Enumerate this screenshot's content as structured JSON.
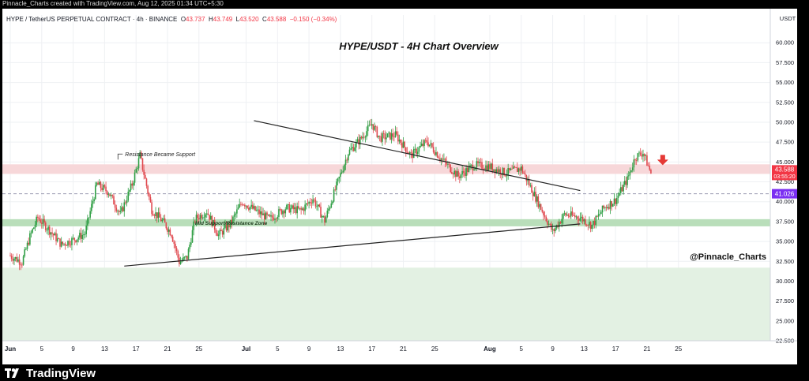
{
  "watermark_top": "Pinnacle_Charts created with TradingView.com, Aug 12, 2025 01:34 UTC+5:30",
  "header": {
    "symbol": "HYPE / TetherUS PERPETUAL CONTRACT · 4h · BINANCE",
    "o_label": "O",
    "o_value": "43.737",
    "h_label": "H",
    "h_value": "43.749",
    "l_label": "L",
    "l_value": "43.520",
    "c_label": "C",
    "c_value": "43.588",
    "change": "−0.150 (−0.34%)"
  },
  "brand": {
    "name": "TradingView",
    "logo_icon": "tradingview-logo-icon"
  },
  "chart_data": {
    "type": "candlestick",
    "title": "HYPE/USDT - 4H Chart Overview",
    "currency_label": "USDT",
    "author_tag": "@Pinnacle_Charts",
    "ylim": [
      22.5,
      62.5
    ],
    "y_ticks": [
      "60.000",
      "57.500",
      "55.000",
      "52.500",
      "50.000",
      "47.500",
      "45.000",
      "42.500",
      "40.000",
      "37.500",
      "35.000",
      "32.500",
      "30.000",
      "27.500",
      "25.000",
      "22.500"
    ],
    "x_ticks": [
      {
        "label": "Jun",
        "bold": true
      },
      {
        "label": "5"
      },
      {
        "label": "9"
      },
      {
        "label": "13"
      },
      {
        "label": "17"
      },
      {
        "label": "21"
      },
      {
        "label": "25"
      },
      {
        "label": "Jul",
        "bold": true
      },
      {
        "label": "5"
      },
      {
        "label": "9"
      },
      {
        "label": "13"
      },
      {
        "label": "17"
      },
      {
        "label": "21"
      },
      {
        "label": "25"
      },
      {
        "label": "Aug",
        "bold": true
      },
      {
        "label": "5"
      },
      {
        "label": "9"
      },
      {
        "label": "13"
      },
      {
        "label": "17"
      },
      {
        "label": "21"
      },
      {
        "label": "25"
      }
    ],
    "price_tags": {
      "last_price": "43.588",
      "countdown": "03:55:20",
      "level": "41.026"
    },
    "zones": [
      {
        "name": "resistance-zone",
        "from": 43.5,
        "to": 44.7,
        "color": "#f7d7d9"
      },
      {
        "name": "mid-zone",
        "from": 36.9,
        "to": 37.8,
        "color": "#b9deba"
      },
      {
        "name": "demand-zone",
        "from": 22.5,
        "to": 31.7,
        "color": "#e3f1e3"
      }
    ],
    "dashed_level": 41.0,
    "annotations": {
      "resistance_label": "Resistance Became Support",
      "mid_zone_label": "Mid Support/Resistance Zone"
    },
    "trendlines": {
      "descending": {
        "from": {
          "day": 31,
          "price": 50.2
        },
        "to": {
          "day": 72.5,
          "price": 41.4
        }
      },
      "ascending": {
        "from": {
          "day": 14.5,
          "price": 31.9
        },
        "to": {
          "day": 72.5,
          "price": 37.2
        }
      }
    },
    "anchors": [
      [
        0,
        33.2
      ],
      [
        1.5,
        32.4
      ],
      [
        2.5,
        35.6
      ],
      [
        3.5,
        38.0
      ],
      [
        5,
        36.4
      ],
      [
        6.5,
        34.6
      ],
      [
        8,
        35.2
      ],
      [
        9.5,
        36.0
      ],
      [
        11,
        42.2
      ],
      [
        12.5,
        41.2
      ],
      [
        14,
        38.4
      ],
      [
        15.5,
        42.2
      ],
      [
        16.5,
        45.8
      ],
      [
        18,
        39.0
      ],
      [
        19.5,
        37.4
      ],
      [
        20.5,
        36.0
      ],
      [
        21.5,
        32.4
      ],
      [
        22.5,
        33.0
      ],
      [
        23.5,
        37.8
      ],
      [
        25,
        38.8
      ],
      [
        26.5,
        35.8
      ],
      [
        28,
        37.2
      ],
      [
        29.5,
        40.0
      ],
      [
        31,
        39.0
      ],
      [
        33,
        37.8
      ],
      [
        35,
        39.2
      ],
      [
        37,
        38.9
      ],
      [
        38.5,
        40.4
      ],
      [
        40,
        37.6
      ],
      [
        41.5,
        42.0
      ],
      [
        43,
        46.2
      ],
      [
        44.5,
        47.8
      ],
      [
        46,
        49.8
      ],
      [
        47,
        48.0
      ],
      [
        49,
        48.4
      ],
      [
        51,
        45.8
      ],
      [
        53,
        47.6
      ],
      [
        55,
        45.2
      ],
      [
        57,
        43.2
      ],
      [
        59,
        44.6
      ],
      [
        61,
        44.4
      ],
      [
        63,
        43.6
      ],
      [
        65,
        44.2
      ],
      [
        66.5,
        41.2
      ],
      [
        67.5,
        39.2
      ],
      [
        69,
        36.2
      ],
      [
        70.5,
        38.4
      ],
      [
        72.5,
        38.0
      ],
      [
        74,
        37.0
      ],
      [
        75.5,
        39.2
      ],
      [
        77,
        40.2
      ],
      [
        78.5,
        42.8
      ],
      [
        79.5,
        45.6
      ],
      [
        80.5,
        46.2
      ],
      [
        81.5,
        43.6
      ]
    ],
    "signal_arrow": {
      "direction": "down",
      "color": "#e53935"
    }
  }
}
